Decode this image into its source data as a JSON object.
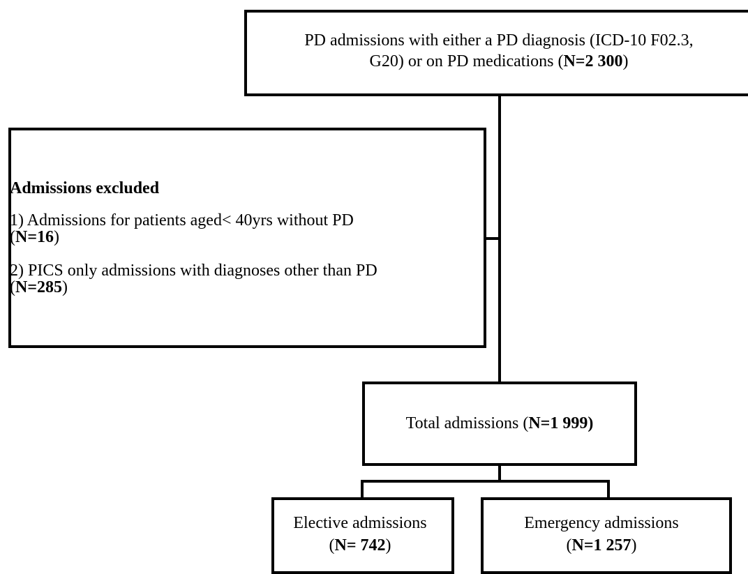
{
  "nodes": [
    {
      "lines": [
        [
          {
            "text": "PD admissions with either a PD diagnosis (ICD-10 F02.3,"
          }
        ],
        [
          {
            "text": "G20) or on PD medications ("
          },
          {
            "text": "N=2 300",
            "bold": true
          },
          {
            "text": ")"
          }
        ]
      ]
    },
    {
      "lines": [
        [
          {
            "text": "Admissions excluded",
            "bold": true
          }
        ],
        [
          {
            "text": "1) Admissions for patients aged< 40yrs without PD"
          }
        ],
        [
          {
            "text": "("
          },
          {
            "text": "N=16",
            "bold": true
          },
          {
            "text": ")"
          }
        ],
        [
          {
            "text": "2) PICS only admissions with diagnoses other than PD"
          }
        ],
        [
          {
            "text": "("
          },
          {
            "text": "N=285",
            "bold": true
          },
          {
            "text": ")"
          }
        ]
      ]
    },
    {
      "lines": [
        [
          {
            "text": "Total admissions ("
          },
          {
            "text": "N=1 999)",
            "bold": true
          }
        ]
      ]
    },
    {
      "lines": [
        [
          {
            "text": "Elective admissions"
          }
        ],
        [
          {
            "text": "("
          },
          {
            "text": "N= 742",
            "bold": true
          },
          {
            "text": ")"
          }
        ]
      ]
    },
    {
      "lines": [
        [
          {
            "text": "Emergency admissions"
          }
        ],
        [
          {
            "text": "("
          },
          {
            "text": "N=1 257",
            "bold": true
          },
          {
            "text": ")"
          }
        ]
      ]
    }
  ]
}
